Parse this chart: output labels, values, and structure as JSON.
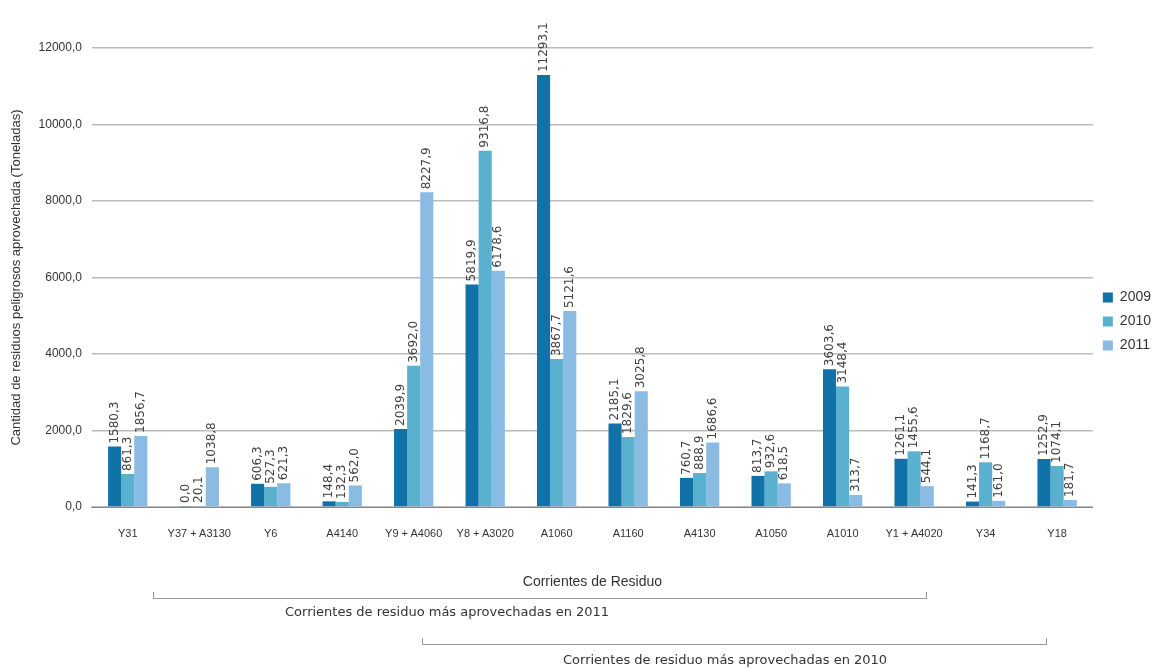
{
  "chart_data": {
    "type": "bar",
    "xlabel": "Corrientes de Residuo",
    "ylabel": "Cantidad de residuos peligrosos aprovechada (Toneladas)",
    "categories": [
      "Y31",
      "Y37 + A3130",
      "Y6",
      "A4140",
      "Y9 + A4060",
      "Y8 + A3020",
      "A1060",
      "A1160",
      "A4130",
      "A1050",
      "A1010",
      "Y1 + A4020",
      "Y34",
      "Y18"
    ],
    "series": [
      {
        "name": "2009",
        "color": "#1172a8",
        "values": [
          1580.3,
          0.0,
          606.3,
          148.4,
          2039.9,
          5819.9,
          11293.1,
          2185.1,
          760.7,
          813.7,
          3603.6,
          1261.1,
          141.3,
          1252.9
        ],
        "value_labels": [
          "1580,3",
          "0,0",
          "606,3",
          "148,4",
          "2039,9",
          "5819,9",
          "11293,1",
          "2185,1",
          "760,7",
          "813,7",
          "3603,6",
          "1261,1",
          "141,3",
          "1252,9"
        ]
      },
      {
        "name": "2010",
        "color": "#5ab0cf",
        "values": [
          861.3,
          20.1,
          527.3,
          132.3,
          3692.0,
          9316.8,
          3867.7,
          1829.6,
          888.9,
          932.6,
          3148.4,
          1455.6,
          1168.7,
          1074.1
        ],
        "value_labels": [
          "861,3",
          "20,1",
          "527,3",
          "132,3",
          "3692,0",
          "9316,8",
          "3867,7",
          "1829,6",
          "888,9",
          "932,6",
          "3148,4",
          "1455,6",
          "1168,7",
          "1074,1"
        ]
      },
      {
        "name": "2011",
        "color": "#8abbe2",
        "values": [
          1856.7,
          1038.8,
          621.3,
          562.0,
          8227.9,
          6178.6,
          5121.6,
          3025.8,
          1686.6,
          618.5,
          313.7,
          544.1,
          161.0,
          181.7
        ],
        "value_labels": [
          "1856,7",
          "1038,8",
          "621,3",
          "562,0",
          "8227,9",
          "6178,6",
          "5121,6",
          "3025,8",
          "1686,6",
          "618,5",
          "313,7",
          "544,1",
          "161,0",
          "181,7"
        ]
      }
    ],
    "ylim": [
      0,
      12000
    ],
    "yticks": [
      {
        "value": 0,
        "label": "0,0"
      },
      {
        "value": 2000,
        "label": "2000,0"
      },
      {
        "value": 4000,
        "label": "4000,0"
      },
      {
        "value": 6000,
        "label": "6000,0"
      },
      {
        "value": 8000,
        "label": "8000,0"
      },
      {
        "value": 10000,
        "label": "10000,0"
      },
      {
        "value": 12000,
        "label": "12000,0"
      }
    ],
    "grid": "y",
    "legend": "right",
    "annotations": [
      "Corrientes de residuo más aprovechadas en 2011",
      "Corrientes de residuo más aprovechadas en 2010"
    ]
  }
}
